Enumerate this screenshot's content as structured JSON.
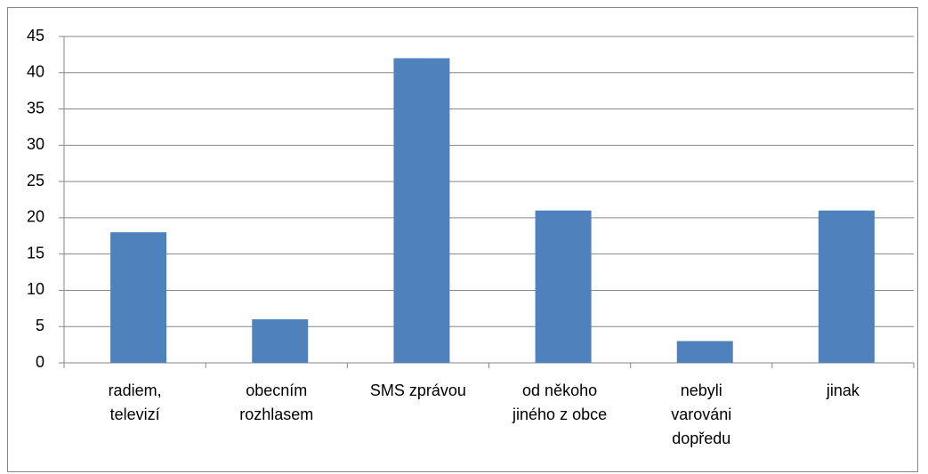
{
  "chart_data": {
    "type": "bar",
    "categories": [
      "radiem,\ntelevizí",
      "obecním\nrozhlasem",
      "SMS zprávou",
      "od někoho\njiného z obce",
      "nebyli\nvarováni\ndopředu",
      "jinak"
    ],
    "values": [
      18,
      6,
      42,
      21,
      3,
      21
    ],
    "color": "#4f81bd",
    "ylim": [
      0,
      45
    ],
    "yticks": [
      0,
      5,
      10,
      15,
      20,
      25,
      30,
      35,
      40,
      45
    ],
    "grid": true
  }
}
